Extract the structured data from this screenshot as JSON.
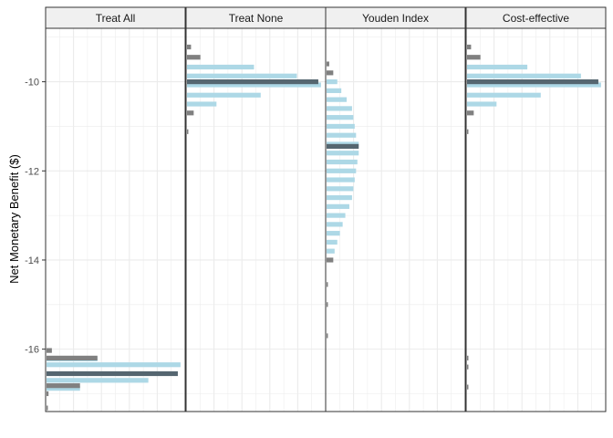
{
  "chart_data": {
    "type": "histogram-facet",
    "ylabel": "Net Monetary Benefit ($)",
    "xlabel": "",
    "ylim": [
      -17.4,
      -8.8
    ],
    "yticks": [
      -10,
      -12,
      -14,
      -16
    ],
    "ytick_labels": [
      "-10",
      "-12",
      "-14",
      "-16"
    ],
    "grid": true,
    "colors": {
      "fill": "#add8e6",
      "tail": "#808080",
      "median": "#556670",
      "strip": "#f0f0f0",
      "border": "#333333"
    },
    "panels": [
      {
        "name": "Treat All",
        "median": -16.55,
        "bins": [
          {
            "y": -17.32,
            "count": 0.01,
            "tail": true
          },
          {
            "y": -17.0,
            "count": 0.015,
            "tail": true
          },
          {
            "y": -16.88,
            "count": 0.25,
            "tail": false
          },
          {
            "y": -16.82,
            "count": 0.25,
            "tail": true
          },
          {
            "y": -16.7,
            "count": 0.76,
            "tail": false
          },
          {
            "y": -16.35,
            "count": 1.0,
            "tail": false
          },
          {
            "y": -16.22,
            "count": 0.38,
            "tail": false
          },
          {
            "y": -16.2,
            "count": 0.38,
            "tail": true
          },
          {
            "y": -16.03,
            "count": 0.04,
            "tail": true
          }
        ]
      },
      {
        "name": "Treat None",
        "median": -10.0,
        "bins": [
          {
            "y": -11.12,
            "count": 0.01,
            "tail": true
          },
          {
            "y": -10.7,
            "count": 0.05,
            "tail": true
          },
          {
            "y": -10.5,
            "count": 0.22,
            "tail": false
          },
          {
            "y": -10.3,
            "count": 0.55,
            "tail": false
          },
          {
            "y": -10.07,
            "count": 1.0,
            "tail": false
          },
          {
            "y": -9.87,
            "count": 0.82,
            "tail": false
          },
          {
            "y": -9.67,
            "count": 0.5,
            "tail": false
          },
          {
            "y": -9.45,
            "count": 0.1,
            "tail": true
          },
          {
            "y": -9.22,
            "count": 0.03,
            "tail": true
          }
        ]
      },
      {
        "name": "Youden Index",
        "median": -11.45,
        "bins": [
          {
            "y": -15.7,
            "count": 0.01,
            "tail": true
          },
          {
            "y": -15.0,
            "count": 0.01,
            "tail": true
          },
          {
            "y": -14.55,
            "count": 0.01,
            "tail": true
          },
          {
            "y": -14.0,
            "count": 0.05,
            "tail": true
          },
          {
            "y": -13.8,
            "count": 0.06,
            "tail": false
          },
          {
            "y": -13.6,
            "count": 0.08,
            "tail": false
          },
          {
            "y": -13.4,
            "count": 0.1,
            "tail": false
          },
          {
            "y": -13.2,
            "count": 0.12,
            "tail": false
          },
          {
            "y": -13.0,
            "count": 0.14,
            "tail": false
          },
          {
            "y": -12.8,
            "count": 0.17,
            "tail": false
          },
          {
            "y": -12.6,
            "count": 0.19,
            "tail": false
          },
          {
            "y": -12.4,
            "count": 0.2,
            "tail": false
          },
          {
            "y": -12.2,
            "count": 0.21,
            "tail": false
          },
          {
            "y": -12.0,
            "count": 0.22,
            "tail": false
          },
          {
            "y": -11.8,
            "count": 0.23,
            "tail": false
          },
          {
            "y": -11.6,
            "count": 0.24,
            "tail": false
          },
          {
            "y": -11.4,
            "count": 0.24,
            "tail": false
          },
          {
            "y": -11.2,
            "count": 0.22,
            "tail": false
          },
          {
            "y": -11.0,
            "count": 0.21,
            "tail": false
          },
          {
            "y": -10.8,
            "count": 0.2,
            "tail": false
          },
          {
            "y": -10.6,
            "count": 0.19,
            "tail": false
          },
          {
            "y": -10.4,
            "count": 0.15,
            "tail": false
          },
          {
            "y": -10.2,
            "count": 0.11,
            "tail": false
          },
          {
            "y": -10.0,
            "count": 0.08,
            "tail": false
          },
          {
            "y": -9.8,
            "count": 0.05,
            "tail": true
          },
          {
            "y": -9.6,
            "count": 0.02,
            "tail": true
          }
        ]
      },
      {
        "name": "Cost-effective",
        "median": -10.0,
        "bins": [
          {
            "y": -16.85,
            "count": 0.01,
            "tail": true
          },
          {
            "y": -16.4,
            "count": 0.01,
            "tail": true
          },
          {
            "y": -16.2,
            "count": 0.01,
            "tail": true
          },
          {
            "y": -11.12,
            "count": 0.01,
            "tail": true
          },
          {
            "y": -10.7,
            "count": 0.05,
            "tail": true
          },
          {
            "y": -10.5,
            "count": 0.22,
            "tail": false
          },
          {
            "y": -10.3,
            "count": 0.55,
            "tail": false
          },
          {
            "y": -10.07,
            "count": 1.0,
            "tail": false
          },
          {
            "y": -9.87,
            "count": 0.85,
            "tail": false
          },
          {
            "y": -9.67,
            "count": 0.45,
            "tail": false
          },
          {
            "y": -9.45,
            "count": 0.1,
            "tail": true
          },
          {
            "y": -9.22,
            "count": 0.03,
            "tail": true
          }
        ]
      }
    ]
  }
}
